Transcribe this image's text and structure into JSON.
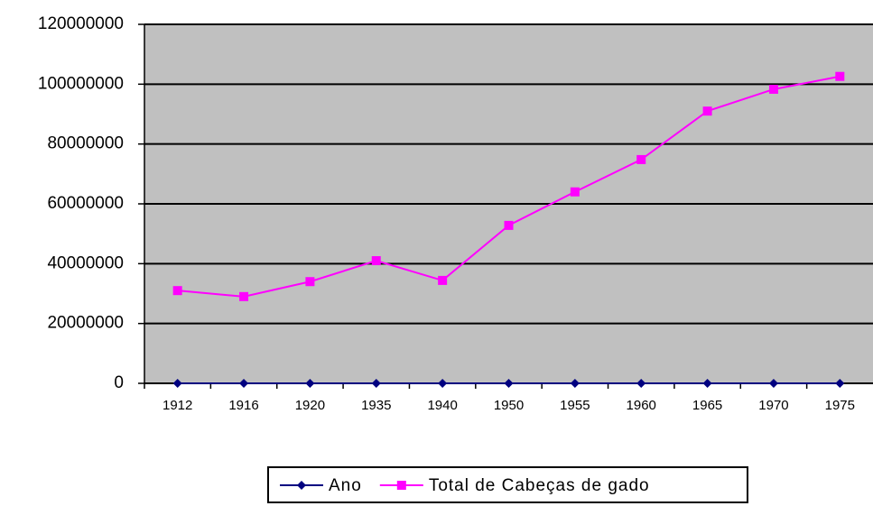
{
  "chart_data": {
    "type": "line",
    "categories": [
      "1912",
      "1916",
      "1920",
      "1935",
      "1940",
      "1950",
      "1955",
      "1960",
      "1965",
      "1970",
      "1975"
    ],
    "series": [
      {
        "name": "Ano",
        "color": "#000080",
        "marker": "diamond",
        "values": [
          1912,
          1916,
          1920,
          1935,
          1940,
          1950,
          1955,
          1960,
          1965,
          1970,
          1975
        ]
      },
      {
        "name": "Total de Cabeças de gado",
        "color": "#ff00ff",
        "marker": "square",
        "values": [
          31000000,
          29000000,
          34000000,
          41000000,
          34400000,
          52800000,
          64000000,
          74800000,
          91000000,
          98300000,
          102600000
        ]
      }
    ],
    "ylim": [
      0,
      120000000
    ],
    "yticks": [
      0,
      20000000,
      40000000,
      60000000,
      80000000,
      100000000,
      120000000
    ],
    "grid": true,
    "plot_background": "#c0c0c0",
    "legend": "bottom"
  }
}
